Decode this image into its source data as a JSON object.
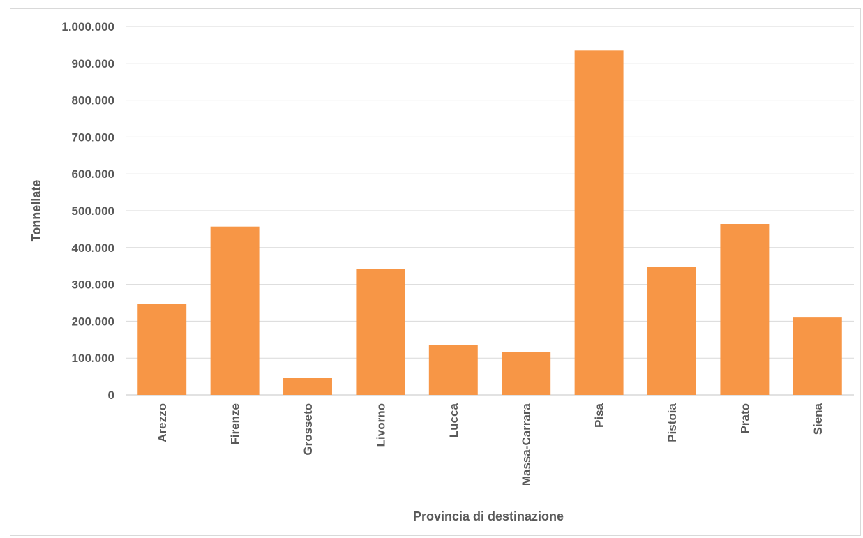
{
  "chart_data": {
    "type": "bar",
    "title": "",
    "xlabel": "Provincia di destinazione",
    "ylabel": "Tonnellate",
    "ylim": [
      0,
      1000000
    ],
    "yticks": [
      0,
      100000,
      200000,
      300000,
      400000,
      500000,
      600000,
      700000,
      800000,
      900000,
      1000000
    ],
    "ytick_labels": [
      "0",
      "100.000",
      "200.000",
      "300.000",
      "400.000",
      "500.000",
      "600.000",
      "700.000",
      "800.000",
      "900.000",
      "1.000.000"
    ],
    "categories": [
      "Arezzo",
      "Firenze",
      "Grosseto",
      "Livorno",
      "Lucca",
      "Massa-Carrara",
      "Pisa",
      "Pistoia",
      "Prato",
      "Siena"
    ],
    "values": [
      248000,
      457000,
      46000,
      341000,
      136000,
      116000,
      935000,
      347000,
      464000,
      210000
    ],
    "bar_color": "#f79646",
    "grid": true,
    "legend": false
  }
}
